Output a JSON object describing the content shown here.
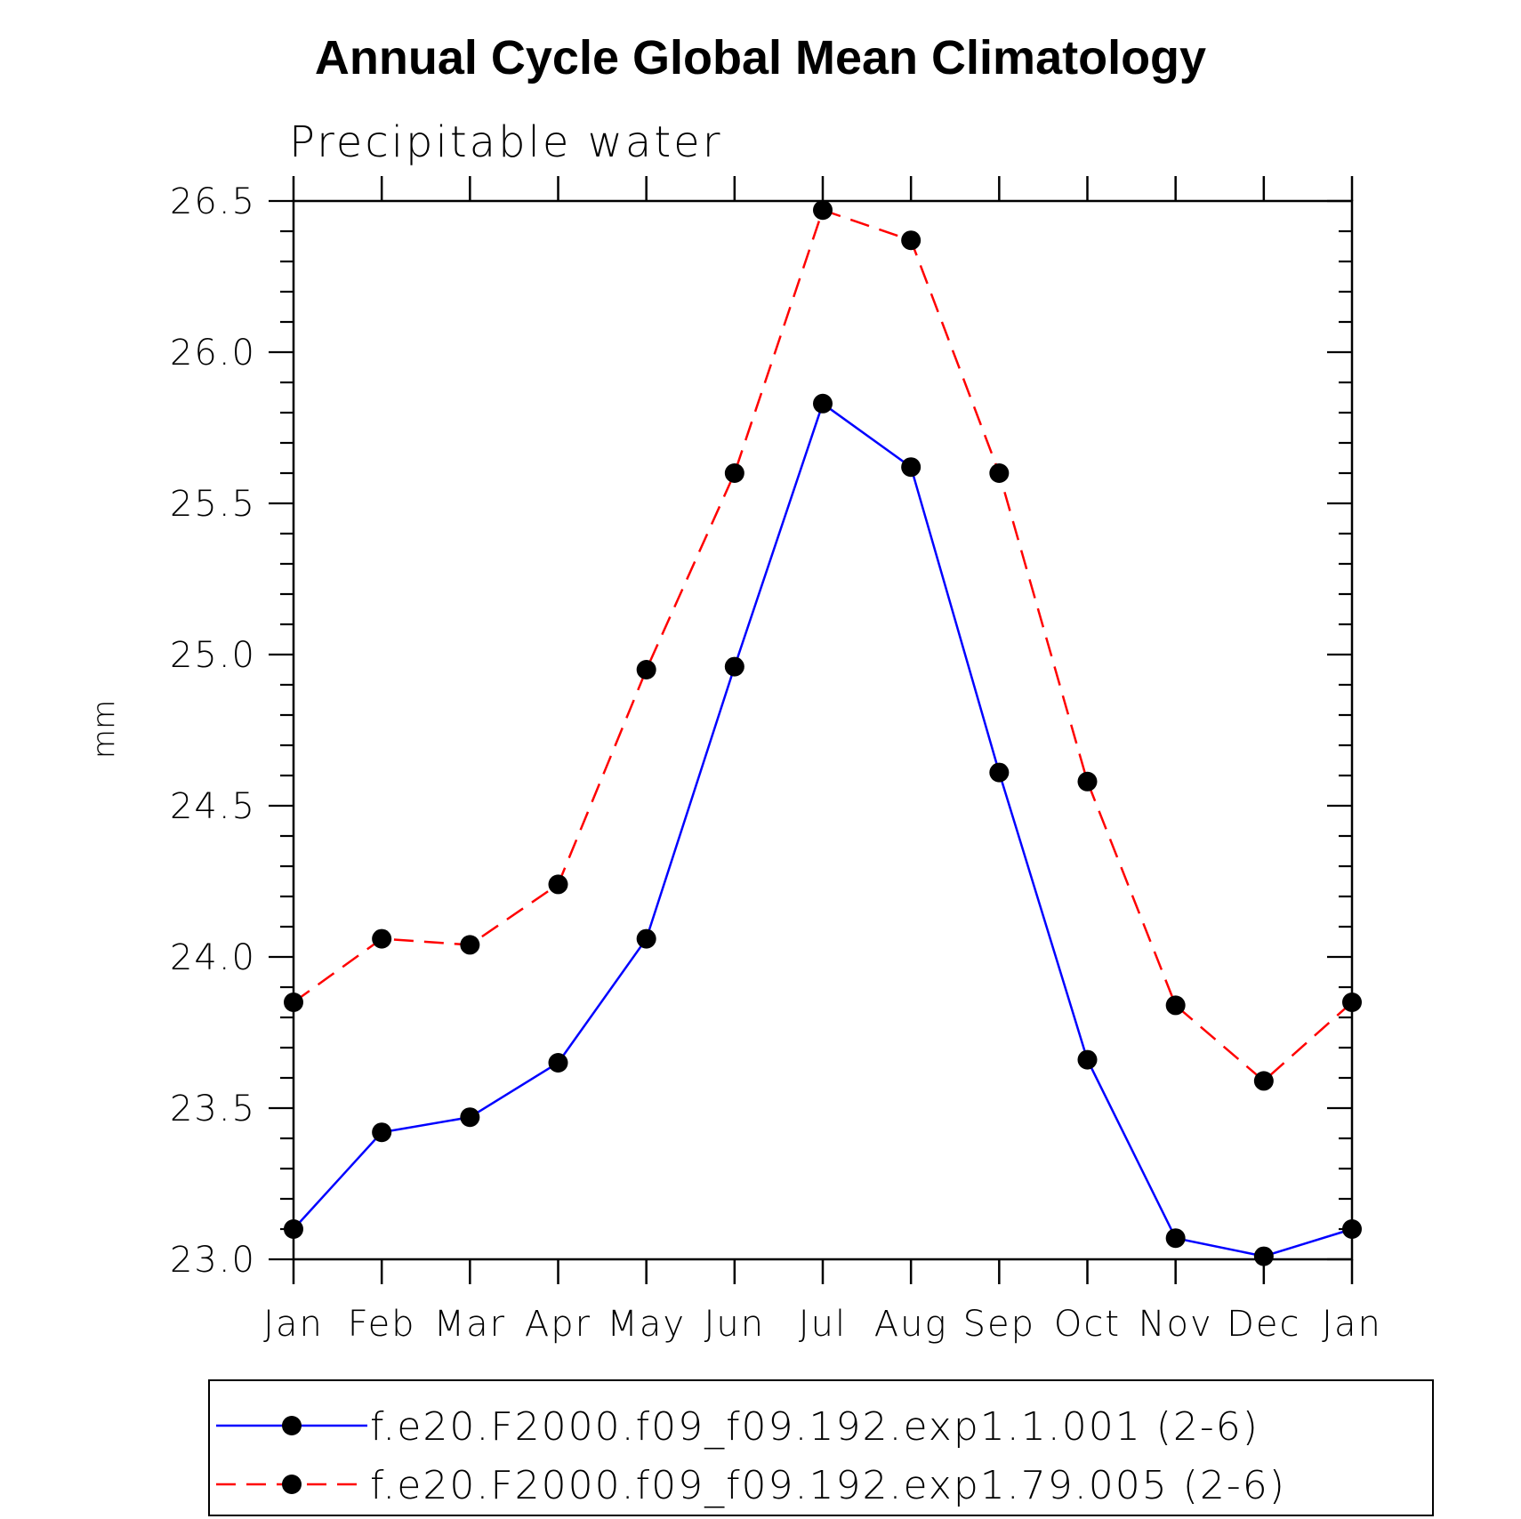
{
  "chart_data": {
    "type": "line",
    "title": "Annual Cycle Global Mean Climatology",
    "subtitle": "Precipitable water",
    "ylabel": "mm",
    "xlabel": "",
    "categories": [
      "Jan",
      "Feb",
      "Mar",
      "Apr",
      "May",
      "Jun",
      "Jul",
      "Aug",
      "Sep",
      "Oct",
      "Nov",
      "Dec",
      "Jan"
    ],
    "ylim": [
      23.0,
      26.5
    ],
    "yticks": [
      "23.0",
      "23.5",
      "24.0",
      "24.5",
      "25.0",
      "25.5",
      "26.0",
      "26.5"
    ],
    "grid": false,
    "legend_position": "bottom",
    "series": [
      {
        "name": "f.e20.F2000.f09_f09.192.exp1.1.001 (2-6)",
        "color": "#0000ff",
        "dash": "solid",
        "marker": "filled-circle",
        "values": [
          23.1,
          23.42,
          23.47,
          23.65,
          24.06,
          24.96,
          25.83,
          25.62,
          24.61,
          23.66,
          23.07,
          23.01,
          23.1
        ]
      },
      {
        "name": "f.e20.F2000.f09_f09.192.exp1.79.005 (2-6)",
        "color": "#ff0000",
        "dash": "dashed",
        "marker": "filled-circle",
        "values": [
          23.85,
          24.06,
          24.04,
          24.24,
          24.95,
          25.6,
          26.47,
          26.37,
          25.6,
          24.58,
          23.84,
          23.59,
          23.85
        ]
      }
    ]
  }
}
